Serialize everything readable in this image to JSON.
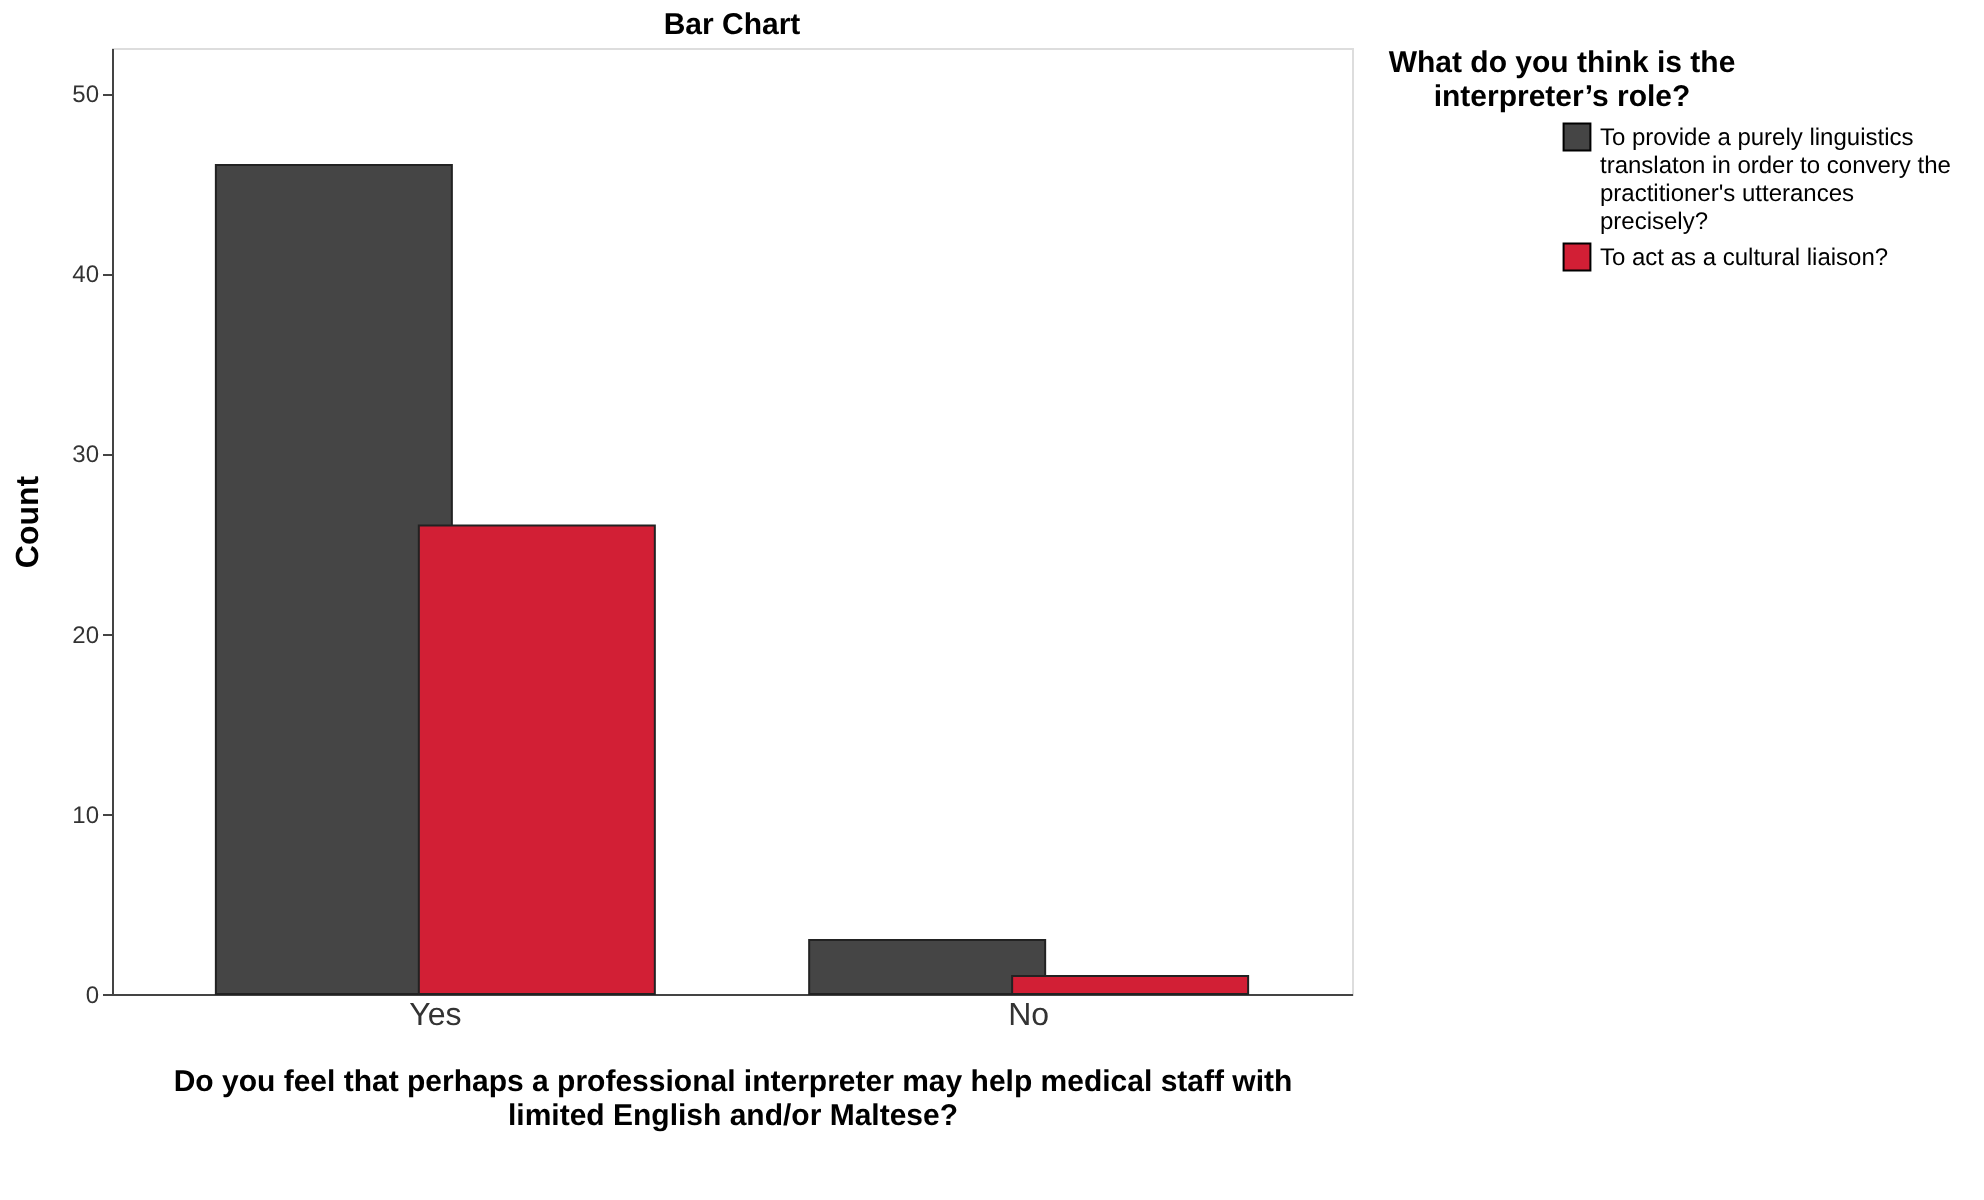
{
  "chart_data": {
    "type": "bar",
    "title": "Bar Chart",
    "xlabel": "Do you feel that perhaps a professional interpreter may help medical staff with limited English and/or Maltese?",
    "ylabel": "Count",
    "legend_title": "What do you think is the interpreter’s role?",
    "categories": [
      "Yes",
      "No"
    ],
    "series": [
      {
        "name": "To provide a purely linguistics translaton in order to convery the practitioner's utterances precisely?",
        "color": "#454545",
        "values": [
          46,
          3
        ]
      },
      {
        "name": "To act as a cultural liaison?",
        "color": "#d21f35",
        "values": [
          26,
          1
        ]
      }
    ],
    "ylim": [
      0,
      52.5
    ],
    "yticks": [
      0,
      10,
      20,
      30,
      40,
      50
    ],
    "grid": false,
    "legend": "top right"
  }
}
